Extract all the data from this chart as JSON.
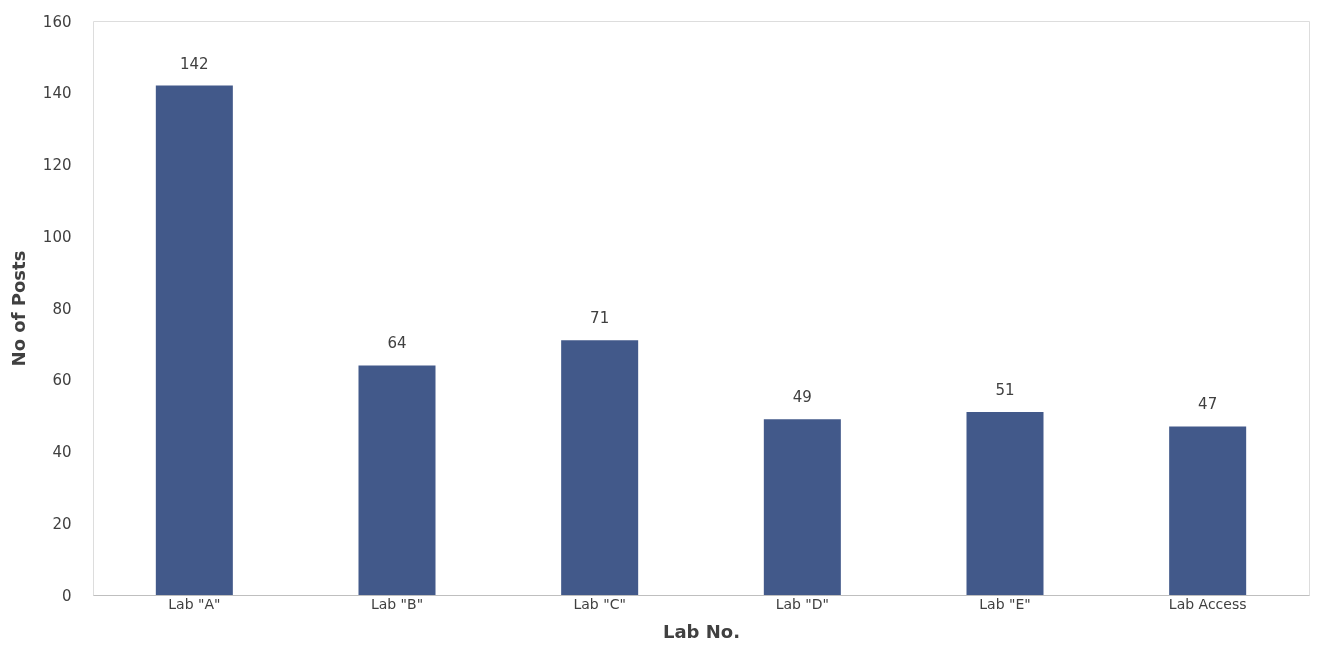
{
  "chart_data": {
    "type": "bar",
    "xlabel": "Lab No.",
    "ylabel": "No of Posts",
    "categories": [
      "Lab \"A\"",
      "Lab \"B\"",
      "Lab \"C\"",
      "Lab \"D\"",
      "Lab \"E\"",
      "Lab Access"
    ],
    "values": [
      142,
      64,
      71,
      49,
      51,
      47
    ],
    "color": "#42598a",
    "ylim": [
      0,
      160
    ],
    "yticks": [
      0,
      20,
      40,
      60,
      80,
      100,
      120,
      140,
      160
    ],
    "grid": false,
    "data_labels": true
  }
}
